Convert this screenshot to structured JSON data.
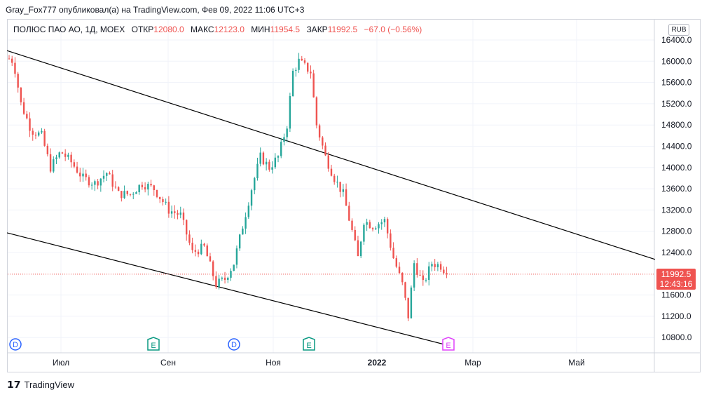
{
  "header": {
    "attribution": "Gray_Fox777 опубликовал(а) на TradingView.com, Фев 09, 2022 11:06 UTC+3"
  },
  "legend": {
    "symbol": "ПОЛЮС ПАО АО, 1Д, MOEX",
    "open_label": "ОТКР",
    "open": "12080.0",
    "high_label": "МАКС",
    "high": "12123.0",
    "low_label": "МИН",
    "low": "11954.5",
    "close_label": "ЗАКР",
    "close": "11992.5",
    "change": "−67.0 (−0.56%)"
  },
  "currency": "RUB",
  "price_tag": {
    "price": "11992.5",
    "countdown": "12:43:16"
  },
  "footer": {
    "brand": "TradingView"
  },
  "colors": {
    "up": "#26a69a",
    "down": "#ef5350",
    "trendline": "#000000",
    "dividend": "#2962ff",
    "earnings": "#089981",
    "earnings_upcoming": "#e040fb"
  },
  "chart_data": {
    "type": "candlestick",
    "ylim": [
      10500,
      16600
    ],
    "y_ticks": [
      "16400.0",
      "16000.0",
      "15600.0",
      "15200.0",
      "14800.0",
      "14400.0",
      "14000.0",
      "13600.0",
      "13200.0",
      "12800.0",
      "12400.0",
      "11600.0",
      "11200.0",
      "10800.0"
    ],
    "x_ticks": [
      "Июл",
      "Сен",
      "Ноя",
      "2022",
      "Мар",
      "Май"
    ],
    "last_price": 11992.5,
    "anchors": [
      {
        "d": 0,
        "p": 16050
      },
      {
        "d": 3,
        "p": 16000
      },
      {
        "d": 8,
        "p": 15200
      },
      {
        "d": 15,
        "p": 14700
      },
      {
        "d": 22,
        "p": 14600
      },
      {
        "d": 28,
        "p": 14000
      },
      {
        "d": 35,
        "p": 14300
      },
      {
        "d": 42,
        "p": 14100
      },
      {
        "d": 50,
        "p": 13800
      },
      {
        "d": 58,
        "p": 13700
      },
      {
        "d": 66,
        "p": 13900
      },
      {
        "d": 74,
        "p": 13500
      },
      {
        "d": 82,
        "p": 13500
      },
      {
        "d": 90,
        "p": 13700
      },
      {
        "d": 98,
        "p": 13600
      },
      {
        "d": 108,
        "p": 13200
      },
      {
        "d": 116,
        "p": 13100
      },
      {
        "d": 124,
        "p": 12400
      },
      {
        "d": 132,
        "p": 12500
      },
      {
        "d": 140,
        "p": 11800
      },
      {
        "d": 146,
        "p": 11900
      },
      {
        "d": 152,
        "p": 12200
      },
      {
        "d": 158,
        "p": 12900
      },
      {
        "d": 164,
        "p": 13600
      },
      {
        "d": 170,
        "p": 14200
      },
      {
        "d": 176,
        "p": 14000
      },
      {
        "d": 182,
        "p": 14200
      },
      {
        "d": 188,
        "p": 14800
      },
      {
        "d": 192,
        "p": 15800
      },
      {
        "d": 196,
        "p": 16000
      },
      {
        "d": 200,
        "p": 15900
      },
      {
        "d": 204,
        "p": 15800
      },
      {
        "d": 208,
        "p": 14800
      },
      {
        "d": 214,
        "p": 14200
      },
      {
        "d": 220,
        "p": 13800
      },
      {
        "d": 226,
        "p": 13500
      },
      {
        "d": 232,
        "p": 12800
      },
      {
        "d": 236,
        "p": 12300
      },
      {
        "d": 240,
        "p": 13000
      },
      {
        "d": 246,
        "p": 12900
      },
      {
        "d": 254,
        "p": 13000
      },
      {
        "d": 260,
        "p": 12300
      },
      {
        "d": 266,
        "p": 11800
      },
      {
        "d": 270,
        "p": 11200
      },
      {
        "d": 274,
        "p": 12200
      },
      {
        "d": 280,
        "p": 11800
      },
      {
        "d": 286,
        "p": 12200
      },
      {
        "d": 292,
        "p": 12150
      },
      {
        "d": 297,
        "p": 11992.5
      }
    ],
    "trendlines": [
      {
        "name": "upper",
        "x1": "early Jun 2021",
        "y1": 16200,
        "x2": "Jun 2022",
        "y2": 12270
      },
      {
        "name": "lower",
        "x1": "early Jun 2021",
        "y1": 12770,
        "x2": "Feb 2022",
        "y2": 10650
      }
    ],
    "events": [
      {
        "type": "D",
        "date": "Jun 2021"
      },
      {
        "type": "E",
        "date": "Aug 2021"
      },
      {
        "type": "D",
        "date": "Oct 2021"
      },
      {
        "type": "E",
        "date": "Nov 2021"
      },
      {
        "type": "E",
        "date": "Feb 2022"
      }
    ]
  }
}
